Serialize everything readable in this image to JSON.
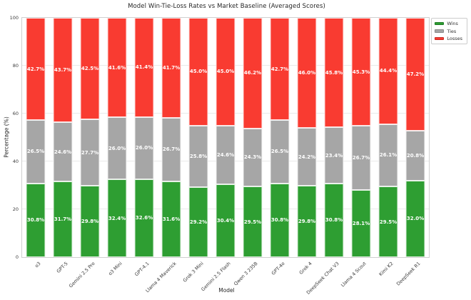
{
  "chart_data": {
    "type": "bar",
    "stacked": true,
    "title": "Model Win-Tie-Loss Rates vs Market Baseline (Averaged Scores)",
    "xlabel": "Model",
    "ylabel": "Percentage (%)",
    "ylim": [
      0,
      100
    ],
    "yticks": [
      0,
      20,
      40,
      60,
      80,
      100
    ],
    "grid": true,
    "legend_position": "upper right outside",
    "categories": [
      "o3",
      "GPT-5",
      "Gemini 2.5 Pro",
      "o3 Mini",
      "GPT-4.1",
      "Llama 4 Maverick",
      "Grok 3 Mini",
      "Gemini 2.5 Flash",
      "Qwen 3 235B",
      "GPT-4o",
      "Grok 4",
      "DeepSeek Chat V3",
      "Llama 4 Scout",
      "Kimi K2",
      "DeepSeek R1"
    ],
    "series": [
      {
        "name": "Wins",
        "color": "#2e9e32",
        "values": [
          30.8,
          31.7,
          29.8,
          32.4,
          32.6,
          31.6,
          29.2,
          30.4,
          29.5,
          30.8,
          29.8,
          30.8,
          28.1,
          29.5,
          32.0
        ]
      },
      {
        "name": "Ties",
        "color": "#a6a6a6",
        "values": [
          26.5,
          24.6,
          27.7,
          26.0,
          26.0,
          26.7,
          25.8,
          24.6,
          24.3,
          26.5,
          24.2,
          23.4,
          26.7,
          26.1,
          20.8
        ]
      },
      {
        "name": "Losses",
        "color": "#f93b31",
        "values": [
          42.7,
          43.7,
          42.5,
          41.6,
          41.4,
          41.7,
          45.0,
          45.0,
          46.2,
          42.7,
          46.0,
          45.8,
          45.3,
          44.4,
          47.2
        ]
      }
    ],
    "label_format": "percent_one_decimal"
  },
  "legend": {
    "entries": [
      {
        "label": "Wins",
        "color": "#2e9e32",
        "edge": "#1f7a24"
      },
      {
        "label": "Ties",
        "color": "#a6a6a6",
        "edge": "#8a8a8a"
      },
      {
        "label": "Losses",
        "color": "#f93b31",
        "edge": "#c62b22"
      }
    ]
  },
  "colors": {
    "background": "#ffffff",
    "grid": "#e9e9e9",
    "plot_border": "#cfcfcf",
    "bar_label_text": "#ffffff",
    "tick_text": "#3a3a3a",
    "title_text": "#262626"
  }
}
